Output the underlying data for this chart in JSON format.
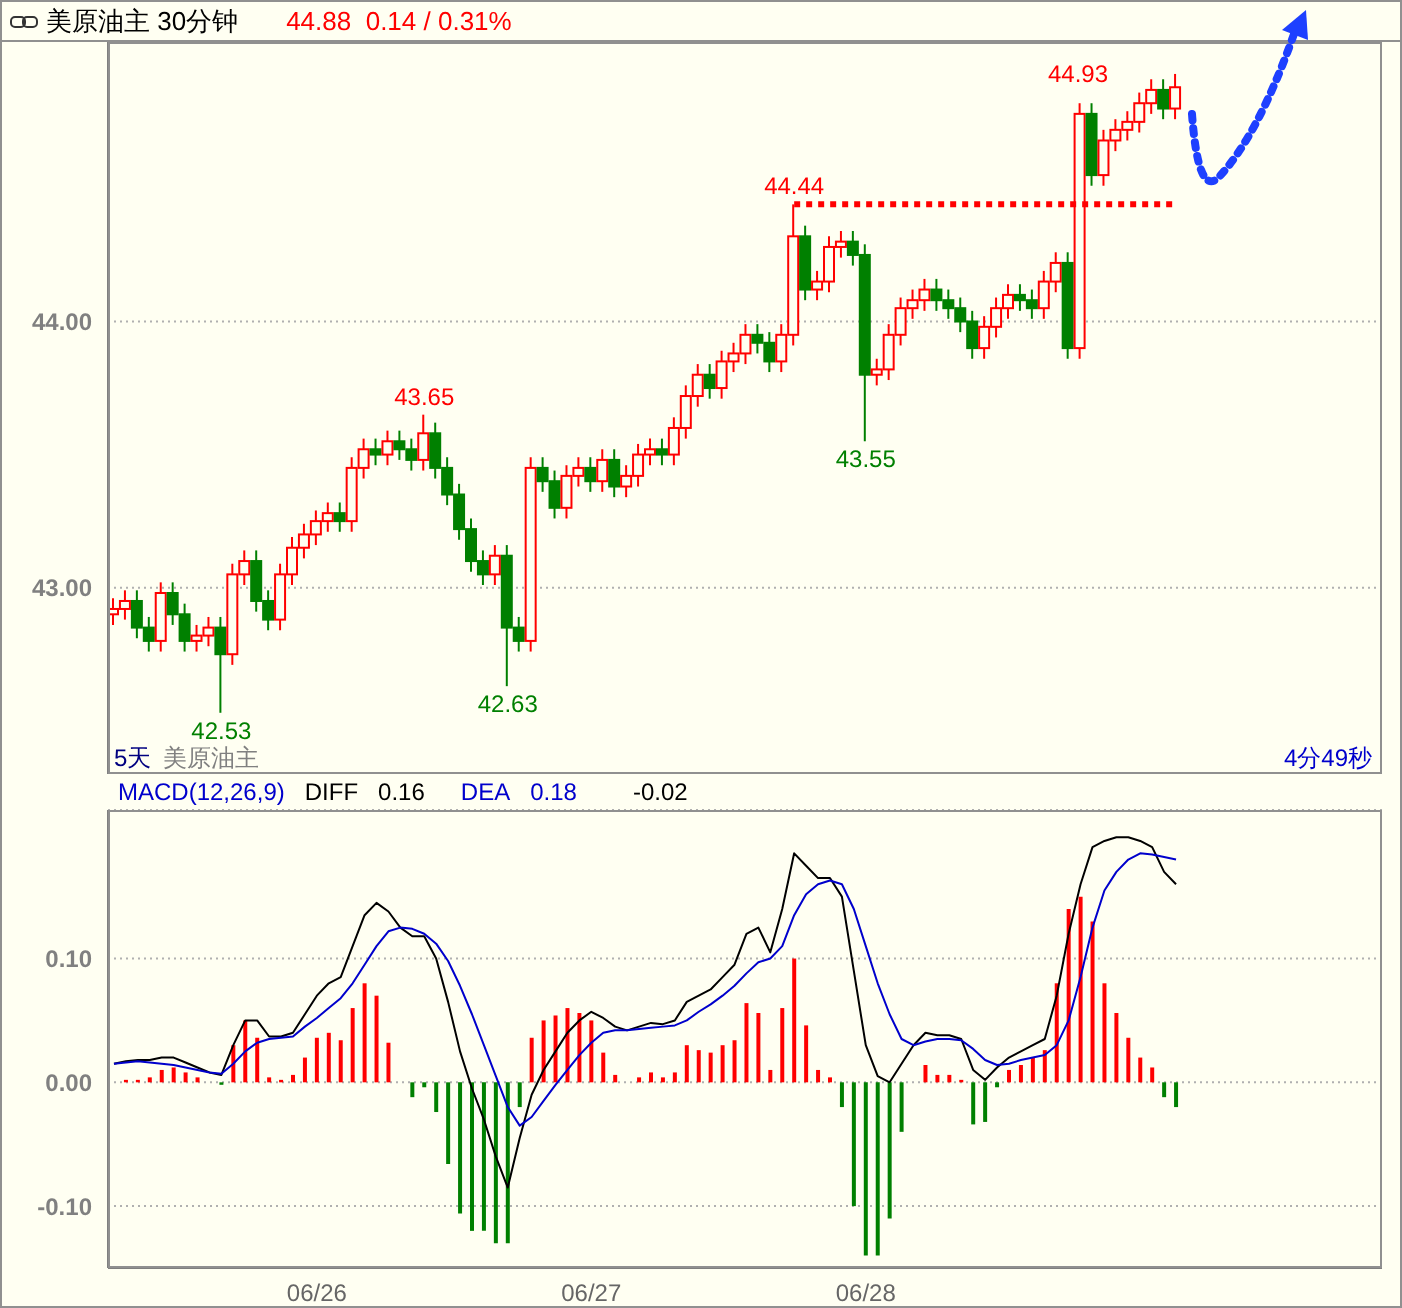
{
  "chart_data": [
    {
      "type": "candlestick",
      "title": "美原油主 30分钟",
      "subtitle": "44.88  0.14 / 0.31%",
      "categories": [
        null,
        null,
        null,
        null,
        null,
        null,
        null,
        null,
        null,
        null,
        null,
        null,
        null,
        null,
        null,
        null,
        null,
        null,
        null,
        null,
        null,
        null,
        null,
        null,
        null,
        null,
        null,
        null,
        null,
        null,
        null,
        null,
        null,
        null,
        null,
        null,
        null,
        null,
        null,
        null,
        null,
        null,
        null,
        null,
        null,
        null,
        null,
        null,
        null,
        null,
        null,
        null,
        null,
        null,
        null,
        null,
        null,
        null,
        null,
        null,
        null,
        null,
        null,
        null,
        null,
        null,
        null,
        null,
        null,
        null,
        null,
        null,
        null,
        null,
        null,
        null,
        null,
        null,
        null,
        null,
        null,
        null,
        null,
        null,
        null,
        null,
        null,
        null,
        null,
        null
      ],
      "ohlc": [
        [
          42.9,
          42.96,
          42.86,
          42.92
        ],
        [
          42.92,
          42.99,
          42.88,
          42.95
        ],
        [
          42.95,
          42.99,
          42.81,
          42.85
        ],
        [
          42.85,
          42.89,
          42.76,
          42.8
        ],
        [
          42.8,
          43.02,
          42.76,
          42.98
        ],
        [
          42.98,
          43.02,
          42.86,
          42.9
        ],
        [
          42.9,
          42.94,
          42.76,
          42.8
        ],
        [
          42.8,
          42.86,
          42.76,
          42.82
        ],
        [
          42.82,
          42.89,
          42.78,
          42.85
        ],
        [
          42.85,
          42.89,
          42.53,
          42.75
        ],
        [
          42.75,
          43.09,
          42.71,
          43.05
        ],
        [
          43.05,
          43.14,
          43.01,
          43.1
        ],
        [
          43.1,
          43.14,
          42.91,
          42.95
        ],
        [
          42.95,
          42.99,
          42.84,
          42.88
        ],
        [
          42.88,
          43.09,
          42.84,
          43.05
        ],
        [
          43.05,
          43.19,
          43.01,
          43.15
        ],
        [
          43.15,
          43.24,
          43.11,
          43.2
        ],
        [
          43.2,
          43.29,
          43.16,
          43.25
        ],
        [
          43.25,
          43.32,
          43.21,
          43.28
        ],
        [
          43.28,
          43.32,
          43.21,
          43.25
        ],
        [
          43.25,
          43.49,
          43.21,
          43.45
        ],
        [
          43.45,
          43.56,
          43.41,
          43.52
        ],
        [
          43.52,
          43.56,
          43.46,
          43.5
        ],
        [
          43.5,
          43.59,
          43.46,
          43.55
        ],
        [
          43.55,
          43.59,
          43.48,
          43.52
        ],
        [
          43.52,
          43.56,
          43.44,
          43.48
        ],
        [
          43.48,
          43.65,
          43.44,
          43.58
        ],
        [
          43.58,
          43.62,
          43.41,
          43.45
        ],
        [
          43.45,
          43.49,
          43.31,
          43.35
        ],
        [
          43.35,
          43.39,
          43.18,
          43.22
        ],
        [
          43.22,
          43.26,
          43.06,
          43.1
        ],
        [
          43.1,
          43.14,
          43.01,
          43.05
        ],
        [
          43.05,
          43.16,
          43.01,
          43.12
        ],
        [
          43.12,
          43.16,
          42.63,
          42.85
        ],
        [
          42.85,
          42.89,
          42.76,
          42.8
        ],
        [
          42.8,
          43.49,
          42.76,
          43.45
        ],
        [
          43.45,
          43.49,
          43.36,
          43.4
        ],
        [
          43.4,
          43.44,
          43.26,
          43.3
        ],
        [
          43.3,
          43.46,
          43.26,
          43.42
        ],
        [
          43.42,
          43.49,
          43.38,
          43.45
        ],
        [
          43.45,
          43.49,
          43.36,
          43.4
        ],
        [
          43.4,
          43.52,
          43.36,
          43.48
        ],
        [
          43.48,
          43.52,
          43.34,
          43.38
        ],
        [
          43.38,
          43.46,
          43.34,
          43.42
        ],
        [
          43.42,
          43.54,
          43.38,
          43.5
        ],
        [
          43.5,
          43.56,
          43.46,
          43.52
        ],
        [
          43.52,
          43.56,
          43.46,
          43.5
        ],
        [
          43.5,
          43.64,
          43.46,
          43.6
        ],
        [
          43.6,
          43.76,
          43.56,
          43.72
        ],
        [
          43.72,
          43.84,
          43.68,
          43.8
        ],
        [
          43.8,
          43.84,
          43.71,
          43.75
        ],
        [
          43.75,
          43.89,
          43.71,
          43.85
        ],
        [
          43.85,
          43.92,
          43.81,
          43.88
        ],
        [
          43.88,
          43.99,
          43.84,
          43.95
        ],
        [
          43.95,
          43.99,
          43.88,
          43.92
        ],
        [
          43.92,
          43.96,
          43.81,
          43.85
        ],
        [
          43.85,
          43.99,
          43.81,
          43.95
        ],
        [
          43.95,
          44.44,
          43.91,
          44.32
        ],
        [
          44.32,
          44.36,
          44.08,
          44.12
        ],
        [
          44.12,
          44.19,
          44.08,
          44.15
        ],
        [
          44.15,
          44.32,
          44.11,
          44.28
        ],
        [
          44.28,
          44.34,
          44.24,
          44.3
        ],
        [
          44.3,
          44.34,
          44.21,
          44.25
        ],
        [
          44.25,
          44.29,
          43.55,
          43.8
        ],
        [
          43.8,
          43.86,
          43.76,
          43.82
        ],
        [
          43.82,
          43.99,
          43.78,
          43.95
        ],
        [
          43.95,
          44.09,
          43.91,
          44.05
        ],
        [
          44.05,
          44.12,
          44.01,
          44.08
        ],
        [
          44.08,
          44.16,
          44.04,
          44.12
        ],
        [
          44.12,
          44.16,
          44.04,
          44.08
        ],
        [
          44.08,
          44.12,
          44.01,
          44.05
        ],
        [
          44.05,
          44.09,
          43.96,
          44.0
        ],
        [
          44.0,
          44.04,
          43.86,
          43.9
        ],
        [
          43.9,
          44.02,
          43.86,
          43.98
        ],
        [
          43.98,
          44.09,
          43.94,
          44.05
        ],
        [
          44.05,
          44.14,
          44.01,
          44.1
        ],
        [
          44.1,
          44.14,
          44.04,
          44.08
        ],
        [
          44.08,
          44.12,
          44.01,
          44.05
        ],
        [
          44.05,
          44.19,
          44.01,
          44.15
        ],
        [
          44.15,
          44.26,
          44.11,
          44.22
        ],
        [
          44.22,
          44.26,
          43.86,
          43.9
        ],
        [
          43.9,
          44.82,
          43.86,
          44.78
        ],
        [
          44.78,
          44.82,
          44.51,
          44.55
        ],
        [
          44.55,
          44.72,
          44.51,
          44.68
        ],
        [
          44.68,
          44.76,
          44.64,
          44.72
        ],
        [
          44.72,
          44.79,
          44.68,
          44.75
        ],
        [
          44.75,
          44.86,
          44.71,
          44.82
        ],
        [
          44.82,
          44.91,
          44.78,
          44.87
        ],
        [
          44.87,
          44.91,
          44.76,
          44.8
        ],
        [
          44.8,
          44.93,
          44.76,
          44.88
        ]
      ],
      "colors": [
        "#ff0000",
        "#ff0000",
        "#008000",
        "#008000",
        "#ff0000",
        "#008000",
        "#008000",
        "#ff0000",
        "#ff0000",
        "#008000",
        "#ff0000",
        "#ff0000",
        "#008000",
        "#008000",
        "#ff0000",
        "#ff0000",
        "#ff0000",
        "#ff0000",
        "#ff0000",
        "#008000",
        "#ff0000",
        "#ff0000",
        "#008000",
        "#ff0000",
        "#008000",
        "#008000",
        "#ff0000",
        "#008000",
        "#008000",
        "#008000",
        "#008000",
        "#008000",
        "#ff0000",
        "#008000",
        "#008000",
        "#ff0000",
        "#008000",
        "#008000",
        "#ff0000",
        "#ff0000",
        "#008000",
        "#ff0000",
        "#008000",
        "#ff0000",
        "#ff0000",
        "#ff0000",
        "#008000",
        "#ff0000",
        "#ff0000",
        "#ff0000",
        "#008000",
        "#ff0000",
        "#ff0000",
        "#ff0000",
        "#008000",
        "#008000",
        "#ff0000",
        "#ff0000",
        "#008000",
        "#ff0000",
        "#ff0000",
        "#ff0000",
        "#008000",
        "#008000",
        "#ff0000",
        "#ff0000",
        "#ff0000",
        "#ff0000",
        "#ff0000",
        "#008000",
        "#008000",
        "#008000",
        "#008000",
        "#ff0000",
        "#ff0000",
        "#ff0000",
        "#008000",
        "#008000",
        "#ff0000",
        "#ff0000",
        "#008000",
        "#ff0000",
        "#008000",
        "#ff0000",
        "#ff0000",
        "#ff0000",
        "#ff0000",
        "#ff0000",
        "#008000",
        "#ff0000"
      ],
      "ylim": [
        42.3,
        45.05
      ],
      "yticks": [
        {
          "value": 43,
          "label": "43.00"
        },
        {
          "value": 44,
          "label": "44.00"
        }
      ],
      "grid": "y",
      "tick_labels": "y",
      "ref_lines": [
        {
          "axis": "y",
          "value": 44.44,
          "color": "#ff0000",
          "line_style": "dotted"
        }
      ],
      "annotations": [
        {
          "text": "42.53",
          "y": 42.53
        },
        {
          "text": "43.65",
          "y": 43.65
        },
        {
          "text": "42.63",
          "y": 42.63
        },
        {
          "text": "44.44",
          "y": 44.44
        },
        {
          "text": "43.55",
          "y": 43.55
        },
        "44.93",
        "5天",
        "美原油主",
        "4分49秒"
      ]
    },
    {
      "type": "bar",
      "title": "MACD(12,26,9)",
      "categories": [
        null,
        null,
        null,
        null,
        null,
        null,
        null,
        null,
        null,
        null,
        null,
        null,
        null,
        null,
        null,
        null,
        null,
        "06/26",
        null,
        null,
        null,
        null,
        null,
        null,
        null,
        null,
        null,
        null,
        null,
        null,
        null,
        null,
        null,
        null,
        null,
        null,
        null,
        null,
        null,
        null,
        "06/27",
        null,
        null,
        null,
        null,
        null,
        null,
        null,
        null,
        null,
        null,
        null,
        null,
        null,
        null,
        null,
        null,
        null,
        null,
        null,
        null,
        null,
        null,
        "06/28",
        null,
        null,
        null,
        null,
        null,
        null,
        null,
        null,
        null,
        null,
        null,
        null,
        null,
        null,
        null,
        null,
        null,
        null,
        null,
        null,
        null,
        null,
        null,
        null,
        null,
        null
      ],
      "series": [
        {
          "type": "bar",
          "values": [
            0,
            0.002,
            0.002,
            0.004,
            0.01,
            0.012,
            0.008,
            0.004,
            0,
            -0.002,
            0.03,
            0.05,
            0.036,
            0.004,
            0.002,
            0.006,
            0.02,
            0.036,
            0.04,
            0.034,
            0.06,
            0.08,
            0.07,
            0.032,
            0,
            -0.012,
            -0.004,
            -0.024,
            -0.066,
            -0.106,
            -0.12,
            -0.12,
            -0.13,
            -0.13,
            -0.02,
            0.036,
            0.05,
            0.054,
            0.06,
            0.056,
            0.05,
            0.024,
            0.006,
            0,
            0.004,
            0.008,
            0.004,
            0.008,
            0.03,
            0.026,
            0.024,
            0.03,
            0.034,
            0.064,
            0.056,
            0.01,
            0.06,
            0.1,
            0.046,
            0.01,
            0.004,
            -0.02,
            -0.1,
            -0.14,
            -0.14,
            -0.11,
            -0.04,
            0,
            0.014,
            0.006,
            0.006,
            0.002,
            -0.034,
            -0.032,
            -0.004,
            0.01,
            0.014,
            0.02,
            0.026,
            0.08,
            0.14,
            0.15,
            0.13,
            0.08,
            0.056,
            0.036,
            0.02,
            0.012,
            -0.012,
            -0.02
          ],
          "colors": [
            "#ff0000",
            "#ff0000",
            "#ff0000",
            "#ff0000",
            "#ff0000",
            "#ff0000",
            "#ff0000",
            "#ff0000",
            "#ff0000",
            "#008000",
            "#ff0000",
            "#ff0000",
            "#ff0000",
            "#ff0000",
            "#ff0000",
            "#ff0000",
            "#ff0000",
            "#ff0000",
            "#ff0000",
            "#ff0000",
            "#ff0000",
            "#ff0000",
            "#ff0000",
            "#ff0000",
            "#ff0000",
            "#008000",
            "#008000",
            "#008000",
            "#008000",
            "#008000",
            "#008000",
            "#008000",
            "#008000",
            "#008000",
            "#008000",
            "#ff0000",
            "#ff0000",
            "#ff0000",
            "#ff0000",
            "#ff0000",
            "#ff0000",
            "#ff0000",
            "#ff0000",
            "#ff0000",
            "#ff0000",
            "#ff0000",
            "#ff0000",
            "#ff0000",
            "#ff0000",
            "#ff0000",
            "#ff0000",
            "#ff0000",
            "#ff0000",
            "#ff0000",
            "#ff0000",
            "#ff0000",
            "#ff0000",
            "#ff0000",
            "#ff0000",
            "#ff0000",
            "#ff0000",
            "#008000",
            "#008000",
            "#008000",
            "#008000",
            "#008000",
            "#008000",
            "#ff0000",
            "#ff0000",
            "#ff0000",
            "#ff0000",
            "#ff0000",
            "#008000",
            "#008000",
            "#008000",
            "#ff0000",
            "#ff0000",
            "#ff0000",
            "#ff0000",
            "#ff0000",
            "#ff0000",
            "#ff0000",
            "#ff0000",
            "#ff0000",
            "#ff0000",
            "#ff0000",
            "#ff0000",
            "#ff0000",
            "#008000",
            "#008000"
          ]
        },
        {
          "type": "line",
          "name": "DIFF",
          "color": "#000000",
          "values": [
            0.015,
            0.017,
            0.018,
            0.018,
            0.02,
            0.02,
            0.016,
            0.012,
            0.008,
            0.006,
            0.03,
            0.05,
            0.05,
            0.037,
            0.037,
            0.04,
            0.055,
            0.07,
            0.08,
            0.085,
            0.11,
            0.135,
            0.145,
            0.138,
            0.125,
            0.118,
            0.118,
            0.1,
            0.065,
            0.025,
            -0.005,
            -0.03,
            -0.06,
            -0.085,
            -0.045,
            -0.01,
            0.01,
            0.025,
            0.04,
            0.05,
            0.057,
            0.052,
            0.045,
            0.042,
            0.045,
            0.048,
            0.047,
            0.05,
            0.065,
            0.07,
            0.075,
            0.085,
            0.095,
            0.12,
            0.125,
            0.105,
            0.14,
            0.185,
            0.175,
            0.165,
            0.165,
            0.15,
            0.09,
            0.03,
            0.005,
            0,
            0.015,
            0.03,
            0.04,
            0.038,
            0.038,
            0.035,
            0.01,
            0.002,
            0.012,
            0.02,
            0.025,
            0.03,
            0.035,
            0.07,
            0.12,
            0.16,
            0.19,
            0.195,
            0.198,
            0.198,
            0.195,
            0.19,
            0.17,
            0.16
          ]
        },
        {
          "type": "line",
          "name": "DEA",
          "color": "#0000cc",
          "values": [
            0.015,
            0.016,
            0.017,
            0.016,
            0.015,
            0.014,
            0.012,
            0.01,
            0.008,
            0.007,
            0.015,
            0.025,
            0.032,
            0.035,
            0.036,
            0.037,
            0.045,
            0.052,
            0.06,
            0.068,
            0.08,
            0.095,
            0.11,
            0.122,
            0.125,
            0.124,
            0.12,
            0.112,
            0.098,
            0.078,
            0.055,
            0.03,
            0.005,
            -0.02,
            -0.035,
            -0.028,
            -0.015,
            -0.002,
            0.01,
            0.022,
            0.032,
            0.04,
            0.042,
            0.042,
            0.043,
            0.044,
            0.045,
            0.046,
            0.05,
            0.057,
            0.063,
            0.07,
            0.078,
            0.088,
            0.097,
            0.1,
            0.11,
            0.135,
            0.152,
            0.16,
            0.163,
            0.16,
            0.14,
            0.11,
            0.08,
            0.055,
            0.035,
            0.03,
            0.033,
            0.035,
            0.035,
            0.034,
            0.027,
            0.018,
            0.014,
            0.015,
            0.018,
            0.02,
            0.022,
            0.03,
            0.05,
            0.085,
            0.125,
            0.155,
            0.17,
            0.18,
            0.185,
            0.184,
            0.182,
            0.18
          ]
        }
      ],
      "ylim": [
        -0.15,
        0.22
      ],
      "yticks": [
        {
          "value": -0.1,
          "label": "-0.10"
        },
        {
          "value": 0,
          "label": "0.00"
        },
        {
          "value": 0.1,
          "label": "0.10"
        }
      ],
      "grid": "y",
      "legend": "top left",
      "annotations": [
        "0.16",
        "0.18",
        "-0.02"
      ]
    }
  ]
}
